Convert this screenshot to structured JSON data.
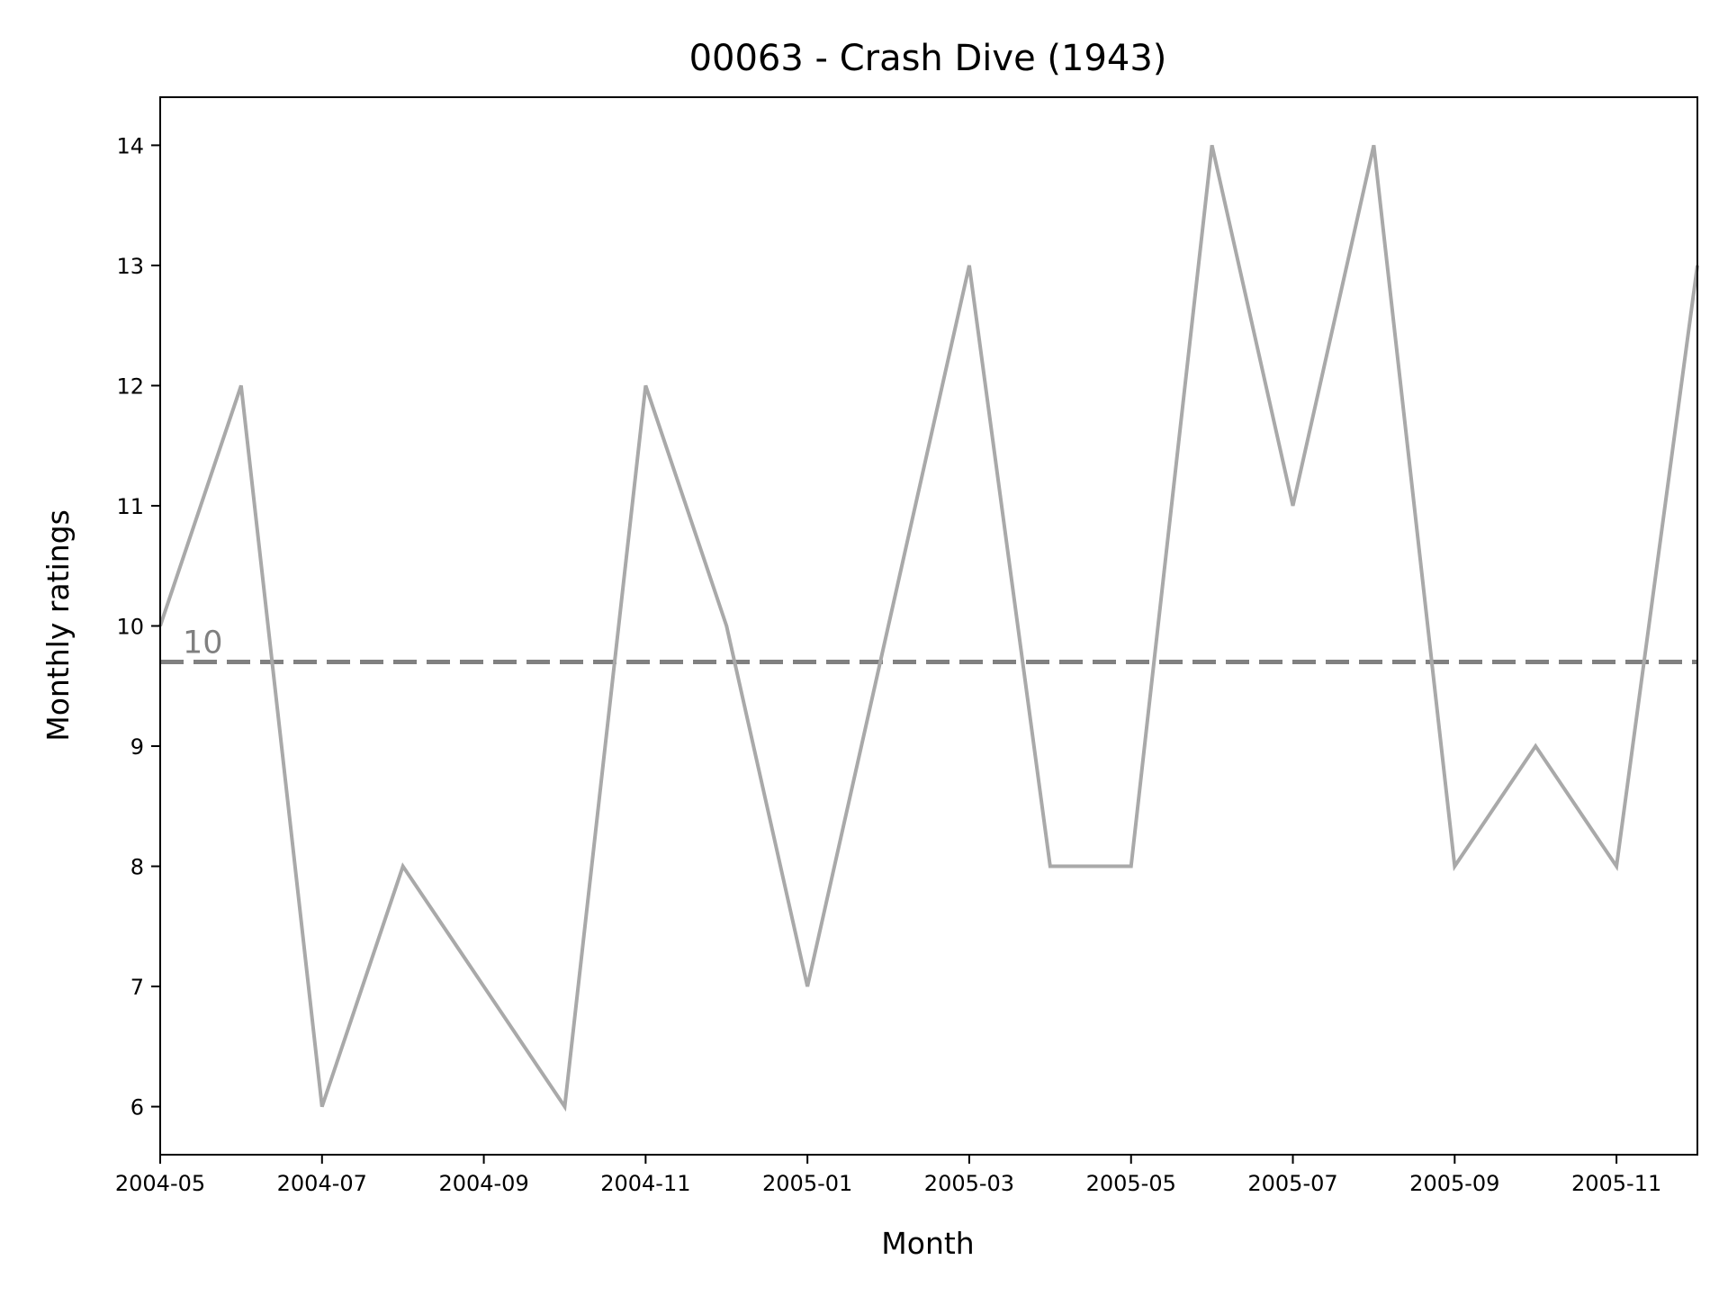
{
  "chart_data": {
    "type": "line",
    "title": "00063 - Crash Dive (1943)",
    "xlabel": "Month",
    "ylabel": "Monthly ratings",
    "x": [
      "2004-05",
      "2004-06",
      "2004-07",
      "2004-08",
      "2004-09",
      "2004-10",
      "2004-11",
      "2004-12",
      "2005-01",
      "2005-02",
      "2005-03",
      "2005-04",
      "2005-05",
      "2005-06",
      "2005-07",
      "2005-08",
      "2005-09",
      "2005-10",
      "2005-11",
      "2005-12"
    ],
    "series": [
      {
        "values": [
          10,
          12,
          6,
          8,
          7,
          6,
          12,
          10,
          7,
          10,
          13,
          8,
          8,
          14,
          11,
          14,
          8,
          9,
          8,
          13
        ]
      }
    ],
    "reference_line": {
      "value": 9.7,
      "label": "10",
      "style": "dashed"
    },
    "xticks": [
      "2004-05",
      "2004-07",
      "2004-09",
      "2004-11",
      "2005-01",
      "2005-03",
      "2005-05",
      "2005-07",
      "2005-09",
      "2005-11"
    ],
    "yticks": [
      6,
      7,
      8,
      9,
      10,
      11,
      12,
      13,
      14
    ],
    "xlim": [
      "2004-05-01",
      "2005-12-01"
    ],
    "ylim": [
      5.6,
      14.4
    ],
    "grid": false,
    "colors": {
      "line": "#a9a9a9",
      "reference": "#808080",
      "reference_label": "#808080",
      "axes": "#000000"
    }
  }
}
